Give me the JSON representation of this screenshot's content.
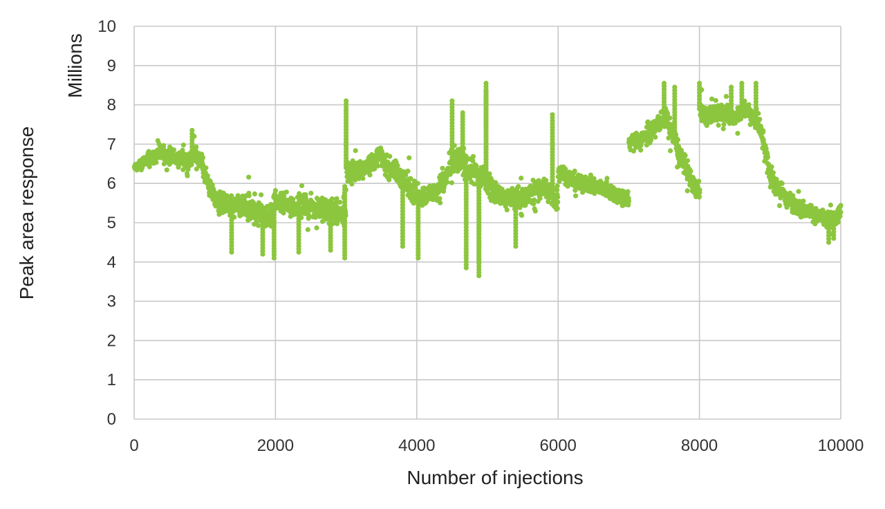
{
  "chart_data": {
    "type": "scatter",
    "title": "",
    "xlabel": "Number of injections",
    "ylabel": "Peak area response",
    "y_unit": "Millions",
    "xlim": [
      0,
      10000
    ],
    "ylim": [
      0,
      10
    ],
    "xticks": [
      0,
      2000,
      4000,
      6000,
      8000,
      10000
    ],
    "yticks": [
      0,
      1,
      2,
      3,
      4,
      5,
      6,
      7,
      8,
      9,
      10
    ],
    "grid": true,
    "colors": {
      "points": "#8cc63f",
      "grid": "#c8c8c8"
    },
    "series": [
      {
        "x": [
          0,
          50,
          100,
          150,
          200,
          250,
          300,
          350,
          400,
          450,
          500,
          550,
          600,
          650,
          700,
          750,
          800,
          850,
          900,
          950,
          1000,
          1050,
          1100,
          1150,
          1200,
          1250,
          1300,
          1350,
          1400,
          1450,
          1500,
          1550,
          1600,
          1650,
          1700,
          1750,
          1800,
          1850,
          1900,
          1950,
          2000,
          2050,
          2100,
          2150,
          2200,
          2250,
          2300,
          2350,
          2400,
          2450,
          2500,
          2550,
          2600,
          2650,
          2700,
          2750,
          2800,
          2850,
          2900,
          2950,
          3000,
          3050,
          3100,
          3150,
          3200,
          3250,
          3300,
          3350,
          3400,
          3450,
          3500,
          3550,
          3600,
          3650,
          3700,
          3750,
          3800,
          3850,
          3900,
          3950,
          4000,
          4050,
          4100,
          4150,
          4200,
          4250,
          4300,
          4350,
          4400,
          4450,
          4500,
          4550,
          4600,
          4650,
          4700,
          4750,
          4800,
          4850,
          4900,
          4950,
          5000,
          5050,
          5100,
          5150,
          5200,
          5250,
          5300,
          5350,
          5400,
          5450,
          5500,
          5550,
          5600,
          5650,
          5700,
          5750,
          5800,
          5850,
          5900,
          5950,
          6000,
          6050,
          6100,
          6150,
          6200,
          6250,
          6300,
          6350,
          6400,
          6450,
          6500,
          6550,
          6600,
          6650,
          6700,
          6750,
          6800,
          6850,
          6900,
          6950,
          7000,
          7050,
          7100,
          7150,
          7200,
          7250,
          7300,
          7350,
          7400,
          7450,
          7500,
          7550,
          7600,
          7650,
          7700,
          7750,
          7800,
          7850,
          7900,
          7950,
          8000,
          8050,
          8100,
          8150,
          8200,
          8250,
          8300,
          8350,
          8400,
          8450,
          8500,
          8550,
          8600,
          8650,
          8700,
          8750,
          8800,
          8850,
          8900,
          8950,
          9000,
          9050,
          9100,
          9150,
          9200,
          9250,
          9300,
          9350,
          9400,
          9450,
          9500,
          9550,
          9600,
          9650,
          9700,
          9750,
          9800,
          9850,
          9900,
          9950,
          10000
        ],
        "y": [
          6.4,
          6.45,
          6.5,
          6.55,
          6.6,
          6.65,
          6.7,
          6.75,
          6.75,
          6.7,
          6.7,
          6.65,
          6.6,
          6.65,
          6.6,
          6.5,
          6.6,
          6.8,
          6.6,
          6.55,
          6.2,
          6.0,
          5.8,
          5.6,
          5.5,
          5.5,
          5.45,
          5.4,
          5.4,
          5.35,
          5.4,
          5.45,
          5.35,
          5.3,
          5.3,
          5.25,
          5.25,
          5.2,
          5.2,
          5.2,
          5.6,
          5.5,
          5.5,
          5.45,
          5.45,
          5.4,
          5.45,
          5.4,
          5.45,
          5.4,
          5.4,
          5.4,
          5.35,
          5.35,
          5.3,
          5.3,
          5.3,
          5.25,
          5.2,
          5.2,
          6.4,
          6.3,
          6.25,
          6.3,
          6.35,
          6.4,
          6.45,
          6.5,
          6.6,
          6.7,
          6.65,
          6.5,
          6.4,
          6.35,
          6.3,
          6.2,
          6.1,
          6.0,
          5.9,
          5.8,
          5.7,
          5.65,
          5.7,
          5.7,
          5.75,
          5.8,
          5.9,
          6.0,
          6.1,
          6.3,
          6.5,
          6.55,
          6.6,
          6.55,
          6.4,
          6.35,
          6.3,
          6.2,
          6.2,
          6.15,
          6.0,
          5.9,
          5.8,
          5.75,
          5.7,
          5.65,
          5.6,
          5.6,
          5.6,
          5.6,
          5.6,
          5.65,
          5.7,
          5.75,
          5.8,
          5.85,
          5.9,
          5.8,
          5.75,
          5.6,
          6.4,
          6.3,
          6.2,
          6.15,
          6.1,
          6.05,
          6.0,
          6.0,
          6.0,
          5.95,
          5.95,
          5.9,
          5.9,
          5.85,
          5.85,
          5.8,
          5.75,
          5.7,
          5.65,
          5.6,
          7.0,
          7.05,
          7.1,
          7.1,
          7.15,
          7.2,
          7.3,
          7.4,
          7.5,
          7.6,
          7.7,
          7.5,
          7.3,
          7.1,
          6.8,
          6.6,
          6.4,
          6.2,
          6.0,
          5.8,
          7.9,
          7.8,
          7.7,
          7.75,
          7.8,
          7.8,
          7.8,
          7.75,
          7.7,
          7.7,
          7.7,
          7.8,
          7.9,
          7.9,
          7.8,
          7.7,
          7.6,
          7.4,
          7.1,
          6.6,
          6.2,
          6.0,
          5.9,
          5.8,
          5.7,
          5.6,
          5.5,
          5.45,
          5.4,
          5.35,
          5.3,
          5.3,
          5.25,
          5.2,
          5.15,
          5.15,
          5.1,
          5.1,
          5.1,
          5.1,
          5.4
        ],
        "spread": [
          0.15,
          0.2,
          0.25,
          0.28,
          0.3,
          0.3,
          0.32,
          0.3,
          0.3,
          0.3,
          0.3,
          0.3,
          0.3,
          0.3,
          0.3,
          0.3,
          0.35,
          0.35,
          0.4,
          0.4,
          0.3,
          0.3,
          0.35,
          0.4,
          0.4,
          0.4,
          0.45,
          0.45,
          0.45,
          0.45,
          0.45,
          0.45,
          0.45,
          0.45,
          0.45,
          0.45,
          0.45,
          0.45,
          0.5,
          0.5,
          0.35,
          0.4,
          0.4,
          0.4,
          0.4,
          0.4,
          0.4,
          0.4,
          0.4,
          0.4,
          0.4,
          0.4,
          0.4,
          0.4,
          0.45,
          0.45,
          0.45,
          0.45,
          0.5,
          0.5,
          0.4,
          0.4,
          0.4,
          0.35,
          0.35,
          0.35,
          0.35,
          0.35,
          0.35,
          0.35,
          0.35,
          0.35,
          0.4,
          0.4,
          0.4,
          0.4,
          0.45,
          0.45,
          0.45,
          0.45,
          0.35,
          0.35,
          0.35,
          0.35,
          0.35,
          0.4,
          0.4,
          0.45,
          0.5,
          0.5,
          0.5,
          0.5,
          0.5,
          0.5,
          0.5,
          0.5,
          0.5,
          0.45,
          0.45,
          0.45,
          0.45,
          0.4,
          0.4,
          0.4,
          0.4,
          0.4,
          0.4,
          0.4,
          0.4,
          0.4,
          0.4,
          0.4,
          0.4,
          0.4,
          0.4,
          0.4,
          0.45,
          0.45,
          0.45,
          0.45,
          0.4,
          0.35,
          0.35,
          0.3,
          0.3,
          0.3,
          0.3,
          0.3,
          0.3,
          0.3,
          0.3,
          0.3,
          0.3,
          0.3,
          0.3,
          0.3,
          0.3,
          0.3,
          0.3,
          0.3,
          0.3,
          0.3,
          0.3,
          0.3,
          0.3,
          0.3,
          0.35,
          0.35,
          0.4,
          0.4,
          0.45,
          0.45,
          0.45,
          0.45,
          0.45,
          0.4,
          0.4,
          0.35,
          0.35,
          0.35,
          0.35,
          0.3,
          0.35,
          0.35,
          0.35,
          0.35,
          0.35,
          0.35,
          0.35,
          0.35,
          0.35,
          0.35,
          0.35,
          0.35,
          0.35,
          0.35,
          0.35,
          0.35,
          0.4,
          0.4,
          0.4,
          0.4,
          0.3,
          0.3,
          0.3,
          0.3,
          0.3,
          0.3,
          0.3,
          0.3,
          0.3,
          0.3,
          0.3,
          0.3,
          0.3,
          0.3,
          0.3,
          0.3,
          0.3,
          0.3,
          0.3,
          0.3,
          0.3
        ],
        "outliers": [
          [
            820,
            7.35
          ],
          [
            3000,
            8.1
          ],
          [
            3000,
            7.85
          ],
          [
            4500,
            8.1
          ],
          [
            4650,
            7.8
          ],
          [
            4980,
            8.55
          ],
          [
            4980,
            8.35
          ],
          [
            4700,
            3.85
          ],
          [
            4880,
            4.0
          ],
          [
            4880,
            3.65
          ],
          [
            4020,
            4.1
          ],
          [
            2980,
            4.1
          ],
          [
            1980,
            4.1
          ],
          [
            1380,
            4.25
          ],
          [
            2330,
            4.25
          ],
          [
            1820,
            4.2
          ],
          [
            2780,
            4.3
          ],
          [
            3800,
            4.4
          ],
          [
            5920,
            7.75
          ],
          [
            7500,
            8.55
          ],
          [
            7650,
            8.45
          ],
          [
            8000,
            8.55
          ],
          [
            8450,
            8.45
          ],
          [
            8600,
            8.55
          ],
          [
            8800,
            8.55
          ],
          [
            9830,
            4.5
          ],
          [
            9900,
            4.6
          ],
          [
            5400,
            4.4
          ]
        ]
      }
    ]
  }
}
